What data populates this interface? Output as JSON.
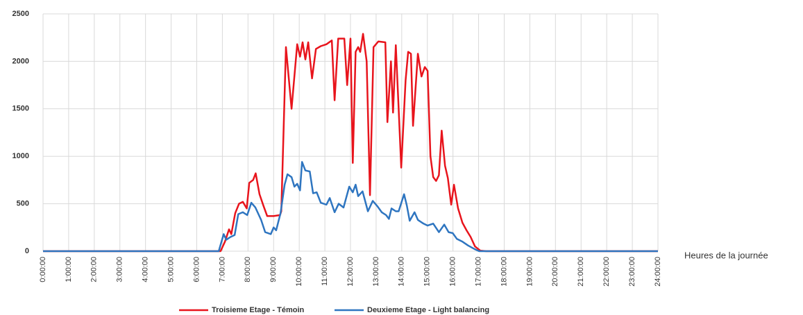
{
  "chart_data": {
    "type": "line",
    "x_label": "Heures de la journée",
    "xlim": [
      0,
      24
    ],
    "ylim": [
      0,
      2500
    ],
    "yticks": [
      0,
      500,
      1000,
      1500,
      2000,
      2500
    ],
    "xticks": [
      {
        "value": 0,
        "label": "0:00:00"
      },
      {
        "value": 1,
        "label": "1:00:00"
      },
      {
        "value": 2,
        "label": "2:00:00"
      },
      {
        "value": 3,
        "label": "3:00:00"
      },
      {
        "value": 4,
        "label": "4:00:00"
      },
      {
        "value": 5,
        "label": "5:00:00"
      },
      {
        "value": 6,
        "label": "6:00:00"
      },
      {
        "value": 7,
        "label": "7:00:00"
      },
      {
        "value": 8,
        "label": "8:00:00"
      },
      {
        "value": 9,
        "label": "9:00:00"
      },
      {
        "value": 10,
        "label": "10:00:00"
      },
      {
        "value": 11,
        "label": "11:00:00"
      },
      {
        "value": 12,
        "label": "12:00:00"
      },
      {
        "value": 13,
        "label": "13:00:00"
      },
      {
        "value": 14,
        "label": "14:00:00"
      },
      {
        "value": 15,
        "label": "15:00:00"
      },
      {
        "value": 16,
        "label": "16:00:00"
      },
      {
        "value": 17,
        "label": "17:00:00"
      },
      {
        "value": 18,
        "label": "18:00:00"
      },
      {
        "value": 19,
        "label": "19:00:00"
      },
      {
        "value": 20,
        "label": "20:00:00"
      },
      {
        "value": 21,
        "label": "21:00:00"
      },
      {
        "value": 22,
        "label": "22:00:00"
      },
      {
        "value": 23,
        "label": "23:00:00"
      },
      {
        "value": 24,
        "label": "24:00:00"
      }
    ],
    "grid": true,
    "legend": "bottom",
    "series": [
      {
        "name": "Troisieme Etage - Témoin",
        "color": "#e8141c",
        "x": [
          0,
          6.93,
          7.1,
          7.26,
          7.35,
          7.5,
          7.65,
          7.8,
          7.95,
          8.05,
          8.2,
          8.3,
          8.45,
          8.6,
          8.75,
          9.0,
          9.25,
          9.3,
          9.48,
          9.7,
          9.92,
          10.03,
          10.13,
          10.24,
          10.35,
          10.5,
          10.65,
          10.84,
          11.06,
          11.27,
          11.38,
          11.52,
          11.76,
          11.87,
          12.0,
          12.09,
          12.2,
          12.3,
          12.38,
          12.49,
          12.63,
          12.76,
          12.9,
          13.09,
          13.36,
          13.44,
          13.58,
          13.66,
          13.77,
          13.88,
          13.98,
          14.15,
          14.25,
          14.36,
          14.44,
          14.63,
          14.77,
          14.9,
          15.01,
          15.12,
          15.23,
          15.34,
          15.45,
          15.56,
          15.69,
          15.8,
          15.93,
          16.04,
          16.2,
          16.37,
          16.53,
          16.69,
          16.86,
          17.07,
          17.29,
          24
        ],
        "values": [
          0,
          0,
          100,
          230,
          180,
          400,
          500,
          520,
          450,
          720,
          750,
          820,
          600,
          480,
          370,
          370,
          380,
          420,
          2150,
          1500,
          2180,
          2050,
          2200,
          2020,
          2200,
          1820,
          2130,
          2160,
          2180,
          2220,
          1590,
          2240,
          2240,
          1750,
          2240,
          930,
          2100,
          2150,
          2100,
          2290,
          2000,
          590,
          2150,
          2210,
          2200,
          1360,
          2000,
          1460,
          2170,
          1500,
          880,
          1800,
          2100,
          2080,
          1320,
          2080,
          1840,
          1940,
          1900,
          1000,
          780,
          740,
          800,
          1270,
          900,
          770,
          490,
          700,
          450,
          300,
          220,
          150,
          50,
          5,
          0,
          0
        ]
      },
      {
        "name": "Deuxieme Etage - Light balancing",
        "color": "#2e75c0",
        "x": [
          0,
          6.86,
          7.05,
          7.15,
          7.32,
          7.48,
          7.62,
          7.8,
          7.97,
          8.13,
          8.29,
          8.51,
          8.67,
          8.89,
          9.0,
          9.1,
          9.27,
          9.43,
          9.54,
          9.7,
          9.81,
          9.92,
          10.03,
          10.11,
          10.24,
          10.41,
          10.54,
          10.68,
          10.84,
          11.06,
          11.19,
          11.38,
          11.54,
          11.73,
          11.95,
          12.09,
          12.2,
          12.3,
          12.47,
          12.68,
          12.87,
          13.06,
          13.22,
          13.39,
          13.5,
          13.6,
          13.77,
          13.88,
          14.09,
          14.2,
          14.31,
          14.5,
          14.63,
          14.85,
          15.01,
          15.23,
          15.45,
          15.66,
          15.83,
          15.99,
          16.15,
          16.37,
          16.59,
          16.86,
          17.02,
          24
        ],
        "values": [
          0,
          0,
          180,
          120,
          150,
          170,
          390,
          410,
          380,
          510,
          460,
          330,
          200,
          180,
          250,
          220,
          400,
          700,
          810,
          780,
          680,
          710,
          640,
          940,
          850,
          840,
          610,
          620,
          510,
          490,
          560,
          410,
          500,
          460,
          680,
          620,
          700,
          580,
          630,
          420,
          530,
          470,
          410,
          380,
          340,
          450,
          420,
          420,
          600,
          480,
          320,
          410,
          330,
          290,
          270,
          290,
          200,
          280,
          200,
          190,
          130,
          100,
          60,
          20,
          0,
          0
        ]
      }
    ]
  }
}
